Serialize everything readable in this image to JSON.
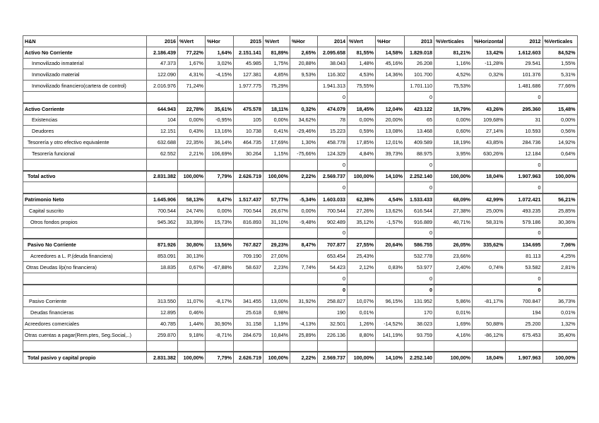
{
  "header": [
    "H&N",
    "2016",
    "%Vert",
    "%Hor",
    "2015",
    "%Vert",
    "%Hor",
    "2014",
    "%Vert",
    "%Hor",
    "2013",
    "%Verticales",
    "%Horizontal",
    "2012",
    "%Verticales"
  ],
  "rows": [
    [
      "Activo No Corriente",
      "2.186.439",
      "77,22%",
      "1,64%",
      "2.151.141",
      "81,89%",
      "2,65%",
      "2.095.658",
      "81,55%",
      "14,58%",
      "1.829.018",
      "81,21%",
      "13,42%",
      "1.612.603",
      "84,52%"
    ],
    [
      "Inmovilizado inmaterial",
      "47.373",
      "1,67%",
      "3,02%",
      "45.985",
      "1,75%",
      "20,88%",
      "38.043",
      "1,48%",
      "45,16%",
      "26.208",
      "1,16%",
      "-11,28%",
      "29.541",
      "1,55%"
    ],
    [
      "Inmovilizado material",
      "122.090",
      "4,31%",
      "-4,15%",
      "127.381",
      "4,85%",
      "9,53%",
      "116.302",
      "4,53%",
      "14,36%",
      "101.700",
      "4,52%",
      "0,32%",
      "101.376",
      "5,31%"
    ],
    [
      "Inmovilizado financiero(cartera de control)",
      "2.016.976",
      "71,24%",
      "",
      "1.977.775",
      "75,29%",
      "",
      "1.941.313",
      "75,55%",
      "",
      "1.701.110",
      "75,53%",
      "",
      "1.481.686",
      "77,66%"
    ],
    [
      "",
      "",
      "",
      "",
      "",
      "",
      "",
      "0",
      "",
      "",
      "0",
      "",
      "",
      "0",
      ""
    ],
    [
      "Activo Corriente",
      "644.943",
      "22,78%",
      "35,61%",
      "475.578",
      "18,11%",
      "0,32%",
      "474.079",
      "18,45%",
      "12,04%",
      "423.122",
      "18,79%",
      "43,26%",
      "295.360",
      "15,48%"
    ],
    [
      "Existencias",
      "104",
      "0,00%",
      "-0,95%",
      "105",
      "0,00%",
      "34,62%",
      "78",
      "0,00%",
      "20,00%",
      "65",
      "0,00%",
      "109,68%",
      "31",
      "0,00%"
    ],
    [
      "Deudores",
      "12.151",
      "0,43%",
      "13,16%",
      "10.738",
      "0,41%",
      "-29,46%",
      "15.223",
      "0,59%",
      "13,08%",
      "13.468",
      "0,60%",
      "27,14%",
      "10.593",
      "0,56%"
    ],
    [
      "Tesorería y otro efectivo equivalente",
      "632.688",
      "22,35%",
      "36,14%",
      "464.735",
      "17,69%",
      "1,30%",
      "458.778",
      "17,85%",
      "12,01%",
      "409.589",
      "18,19%",
      "43,85%",
      "284.736",
      "14,92%"
    ],
    [
      "Tesorería funcional",
      "62.552",
      "2,21%",
      "106,69%",
      "30.264",
      "1,15%",
      "-75,66%",
      "124.329",
      "4,84%",
      "39,73%",
      "88.975",
      "3,95%",
      "630,26%",
      "12.184",
      "0,64%"
    ],
    [
      "",
      "",
      "",
      "",
      "",
      "",
      "",
      "0",
      "",
      "",
      "0",
      "",
      "",
      "0",
      ""
    ],
    [
      "Total activo",
      "2.831.382",
      "100,00%",
      "7,79%",
      "2.626.719",
      "100,00%",
      "2,22%",
      "2.569.737",
      "100,00%",
      "14,10%",
      "2.252.140",
      "100,00%",
      "18,04%",
      "1.907.963",
      "100,00%"
    ],
    [
      "",
      "",
      "",
      "",
      "",
      "",
      "",
      "0",
      "",
      "",
      "0",
      "",
      "",
      "0",
      ""
    ],
    [
      "Patrimonio Neto",
      "1.645.906",
      "58,13%",
      "8,47%",
      "1.517.437",
      "57,77%",
      "-5,34%",
      "1.603.033",
      "62,38%",
      "4,54%",
      "1.533.433",
      "68,09%",
      "42,99%",
      "1.072.421",
      "56,21%"
    ],
    [
      "Capital suscrito",
      "700.544",
      "24,74%",
      "0,00%",
      "700.544",
      "26,67%",
      "0,00%",
      "700.544",
      "27,26%",
      "13,62%",
      "616.544",
      "27,38%",
      "25,00%",
      "493.235",
      "25,85%"
    ],
    [
      "Otros fondos propios",
      "945.362",
      "33,39%",
      "15,73%",
      "816.893",
      "31,10%",
      "-9,48%",
      "902.489",
      "35,12%",
      "-1,57%",
      "916.889",
      "40,71%",
      "58,31%",
      "579.186",
      "30,36%"
    ],
    [
      "",
      "",
      "",
      "",
      "",
      "",
      "",
      "0",
      "",
      "",
      "0",
      "",
      "",
      "0",
      ""
    ],
    [
      "Pasivo No Corriente",
      "871.926",
      "30,80%",
      "13,56%",
      "767.827",
      "29,23%",
      "8,47%",
      "707.877",
      "27,55%",
      "20,64%",
      "586.755",
      "26,05%",
      "335,62%",
      "134.695",
      "7,06%"
    ],
    [
      "Acreedores a L. P.(deuda financiera)",
      "853.091",
      "30,13%",
      "",
      "709.190",
      "27,00%",
      "",
      "653.454",
      "25,43%",
      "",
      "532.778",
      "23,66%",
      "",
      "81.113",
      "4,25%"
    ],
    [
      "Otras Deudas l/p(no financiera)",
      "18.835",
      "0,67%",
      "-67,88%",
      "58.637",
      "2,23%",
      "7,74%",
      "54.423",
      "2,12%",
      "0,83%",
      "53.977",
      "2,40%",
      "0,74%",
      "53.582",
      "2,81%"
    ],
    [
      "",
      "",
      "",
      "",
      "",
      "",
      "",
      "0",
      "",
      "",
      "0",
      "",
      "",
      "0",
      ""
    ],
    [
      "",
      "",
      "",
      "",
      "",
      "",
      "",
      "0",
      "",
      "",
      "0",
      "",
      "",
      "0",
      ""
    ],
    [
      "Pasivo Corriente",
      "313.550",
      "11,07%",
      "-8,17%",
      "341.455",
      "13,00%",
      "31,92%",
      "258.827",
      "10,07%",
      "96,15%",
      "131.952",
      "5,86%",
      "-81,17%",
      "700.847",
      "36,73%"
    ],
    [
      "Deudas financieras",
      "12.895",
      "0,46%",
      "",
      "25.618",
      "0,98%",
      "",
      "190",
      "0,01%",
      "",
      "170",
      "0,01%",
      "",
      "194",
      "0,01%"
    ],
    [
      "Acreedores comerciales",
      "40.785",
      "1,44%",
      "30,90%",
      "31.158",
      "1,19%",
      "-4,13%",
      "32.501",
      "1,26%",
      "-14,52%",
      "38.023",
      "1,69%",
      "50,88%",
      "25.200",
      "1,32%"
    ],
    [
      "Otras cuentas a pagar(Rem.ptes, Seg.Social,..)",
      "259.870",
      "9,18%",
      "-8,71%",
      "284.679",
      "10,84%",
      "25,89%",
      "226.136",
      "8,80%",
      "141,19%",
      "93.759",
      "4,16%",
      "-86,12%",
      "675.453",
      "35,40%"
    ],
    [
      "",
      "",
      "",
      "",
      "",
      "",
      "",
      "",
      "",
      "",
      "",
      "",
      "",
      "",
      ""
    ],
    [
      "Total pasivo y capital propio",
      "2.831.382",
      "100,00%",
      "7,79%",
      "2.626.719",
      "100,00%",
      "2,22%",
      "2.569.737",
      "100,00%",
      "14,10%",
      "2.252.140",
      "100,00%",
      "18,04%",
      "1.907.963",
      "100,00%"
    ]
  ]
}
